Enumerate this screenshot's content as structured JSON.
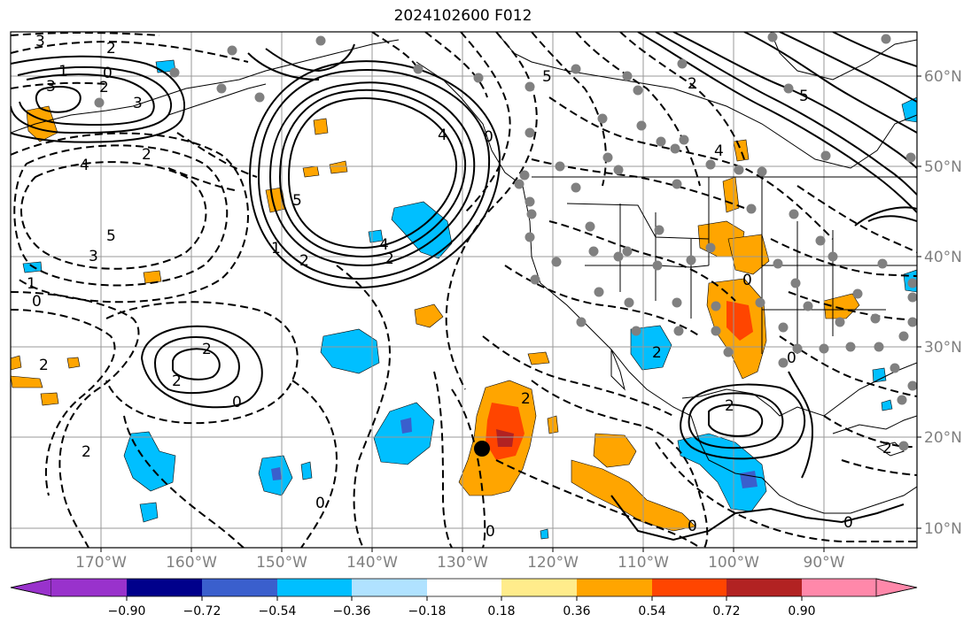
{
  "title": "2024102600 F012",
  "lon_labels": [
    "170°W",
    "160°W",
    "150°W",
    "140°W",
    "130°W",
    "120°W",
    "110°W",
    "100°W",
    "90°W"
  ],
  "lat_labels": [
    "60°N",
    "50°N",
    "40°N",
    "30°N",
    "20°N",
    "10°N"
  ],
  "colorbar": {
    "ticks": [
      "−0.90",
      "−0.72",
      "−0.54",
      "−0.36",
      "−0.18",
      "0.18",
      "0.36",
      "0.54",
      "0.72",
      "0.90"
    ],
    "colors": [
      "#9932cc",
      "#00008b",
      "#3a5fcd",
      "#00bfff",
      "#b0e2ff",
      "#ffffff",
      "#ffec8b",
      "#ffa500",
      "#ff4500",
      "#b22222",
      "#ff88aa"
    ]
  },
  "contour_labels": [
    {
      "text": "3"
    },
    {
      "text": "1"
    },
    {
      "text": "0"
    },
    {
      "text": "3"
    },
    {
      "text": "2"
    },
    {
      "text": "3"
    },
    {
      "text": "4"
    },
    {
      "text": "2"
    },
    {
      "text": "2"
    },
    {
      "text": "5"
    },
    {
      "text": "3"
    },
    {
      "text": "1"
    },
    {
      "text": "0"
    },
    {
      "text": "2"
    },
    {
      "text": "2"
    },
    {
      "text": "5"
    },
    {
      "text": "1"
    },
    {
      "text": "2"
    },
    {
      "text": "4"
    },
    {
      "text": "2"
    },
    {
      "text": "4"
    },
    {
      "text": "5"
    },
    {
      "text": "0"
    },
    {
      "text": "4"
    },
    {
      "text": "5"
    },
    {
      "text": "2"
    },
    {
      "text": "2"
    },
    {
      "text": "0"
    },
    {
      "text": "2"
    },
    {
      "text": "2"
    },
    {
      "text": "0"
    },
    {
      "text": "2"
    },
    {
      "text": "0"
    },
    {
      "text": "0"
    },
    {
      "text": "2"
    },
    {
      "text": "0"
    },
    {
      "text": "2"
    },
    {
      "text": "0"
    },
    {
      "text": "0"
    }
  ],
  "marker": {
    "name": "storm-center-marker"
  }
}
